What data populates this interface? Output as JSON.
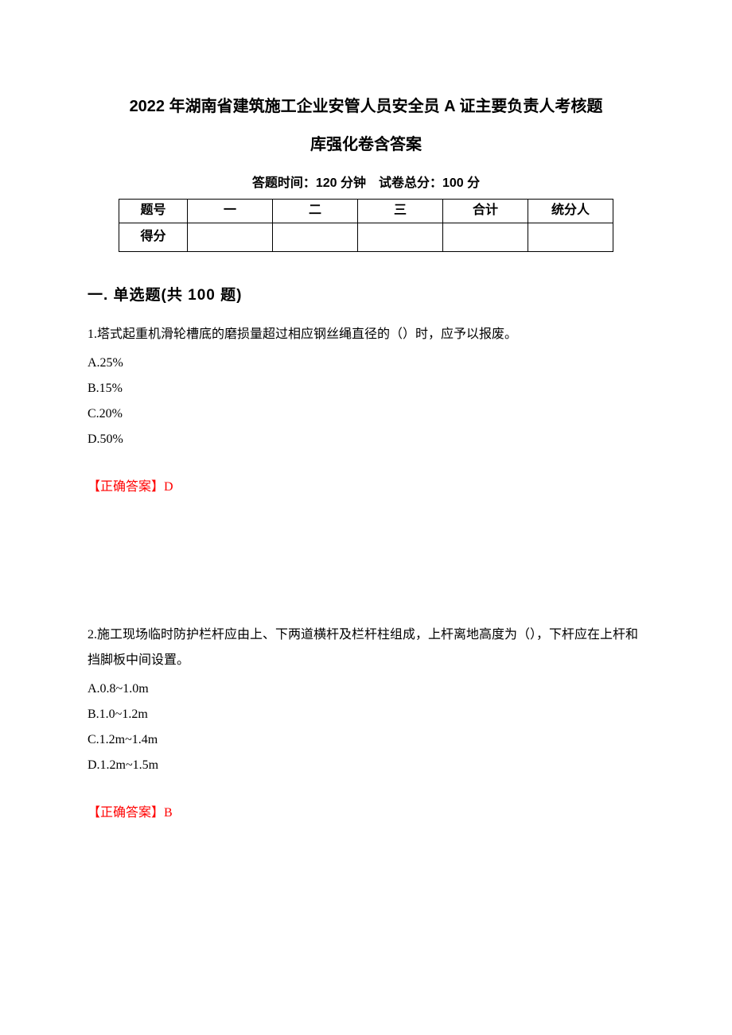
{
  "title_line1": "2022 年湖南省建筑施工企业安管人员安全员 A 证主要负责人考核题",
  "title_line2": "库强化卷含答案",
  "exam_info": "答题时间：120 分钟　试卷总分：100 分",
  "table": {
    "row1_label": "题号",
    "row2_label": "得分",
    "cols": [
      "一",
      "二",
      "三",
      "合计",
      "统分人"
    ]
  },
  "section_heading": "一. 单选题(共 100 题)",
  "questions": [
    {
      "text": "1.塔式起重机滑轮槽底的磨损量超过相应钢丝绳直径的（）时，应予以报废。",
      "options": [
        "A.25%",
        "B.15%",
        "C.20%",
        "D.50%"
      ],
      "answer": "【正确答案】D"
    },
    {
      "text": "2.施工现场临时防护栏杆应由上、下两道横杆及栏杆柱组成，上杆离地高度为（），下杆应在上杆和挡脚板中间设置。",
      "options": [
        "A.0.8~1.0m",
        "B.1.0~1.2m",
        "C.1.2m~1.4m",
        "D.1.2m~1.5m"
      ],
      "answer": "【正确答案】B"
    }
  ]
}
